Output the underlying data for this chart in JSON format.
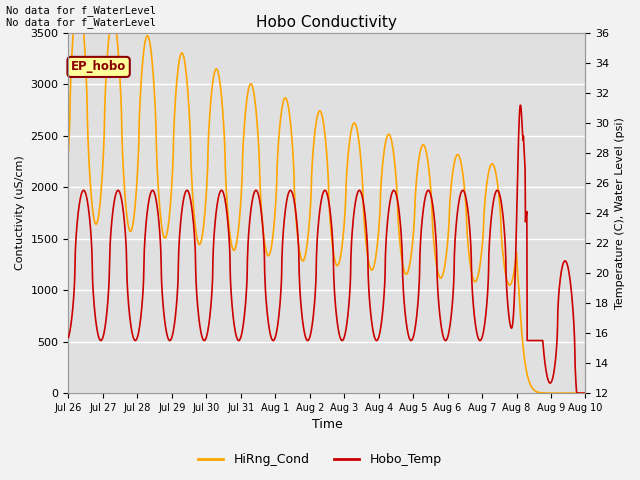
{
  "title": "Hobo Conductivity",
  "xlabel": "Time",
  "ylabel_left": "Contuctivity (uS/cm)",
  "ylabel_right": "Temperature (C), Water Level (psi)",
  "text_top_left": "No data for f_WaterLevel\nNo data for f_WaterLevel",
  "annotation_box": "EP_hobo",
  "legend_entries": [
    "HiRng_Cond",
    "Hobo_Temp"
  ],
  "legend_colors": [
    "#FFA500",
    "#CC0000"
  ],
  "left_ylim": [
    0,
    3500
  ],
  "right_ylim": [
    12,
    36
  ],
  "left_yticks": [
    0,
    500,
    1000,
    1500,
    2000,
    2500,
    3000,
    3500
  ],
  "right_yticks": [
    12,
    14,
    16,
    18,
    20,
    22,
    24,
    26,
    28,
    30,
    32,
    34,
    36
  ],
  "xtick_labels": [
    "Jul 26",
    "Jul 27",
    "Jul 28",
    "Jul 29",
    "Jul 30",
    "Jul 31",
    "Aug 1",
    "Aug 2",
    "Aug 3",
    "Aug 4",
    "Aug 5",
    "Aug 6",
    "Aug 7",
    "Aug 8",
    "Aug 9",
    "Aug 10"
  ],
  "fig_bg_color": "#F2F2F2",
  "plot_bg_color": "#E0E0E0",
  "grid_color": "#FFFFFF",
  "line_color_cond": "#FFA500",
  "line_color_temp": "#CC0000",
  "line_width": 1.2
}
